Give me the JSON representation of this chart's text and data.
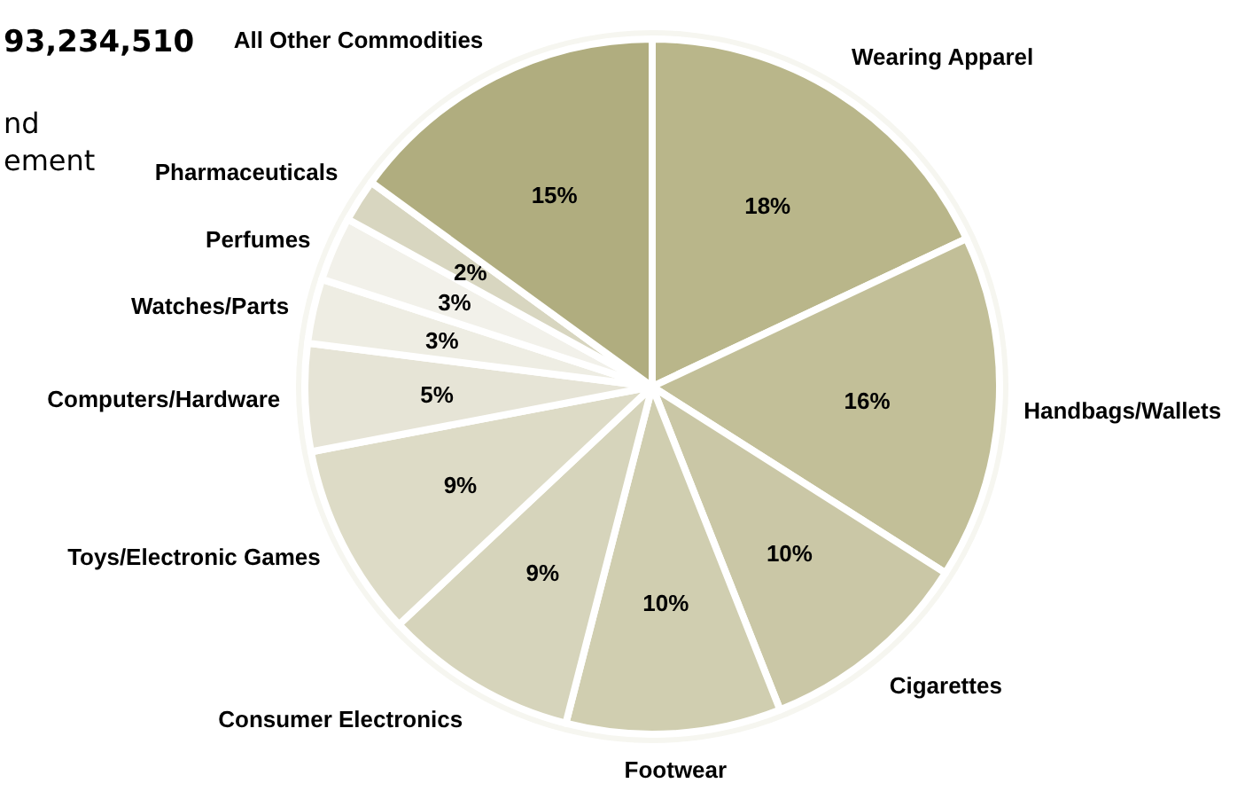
{
  "chart_data": {
    "type": "pie",
    "title": "93,234,510",
    "annotations": [
      "nd",
      "ement"
    ],
    "categories": [
      "Wearing Apparel",
      "Handbags/Wallets",
      "Cigarettes",
      "Footwear",
      "Consumer Electronics",
      "Toys/Electronic Games",
      "Computers/Hardware",
      "Watches/Parts",
      "Perfumes",
      "Pharmaceuticals",
      "All Other Commodities"
    ],
    "values": [
      18,
      16,
      10,
      10,
      9,
      9,
      5,
      3,
      3,
      2,
      15
    ],
    "value_labels": [
      "18%",
      "16%",
      "10%",
      "10%",
      "9%",
      "9%",
      "5%",
      "3%",
      "3%",
      "2%",
      "15%"
    ],
    "colors": [
      "#b9b68a",
      "#c2bf98",
      "#cac7a6",
      "#d0ceb0",
      "#d6d4bb",
      "#dddbc6",
      "#e6e4d6",
      "#eeede3",
      "#f2f1ea",
      "#d8d6c0",
      "#b0ad7f"
    ],
    "legend": false
  }
}
